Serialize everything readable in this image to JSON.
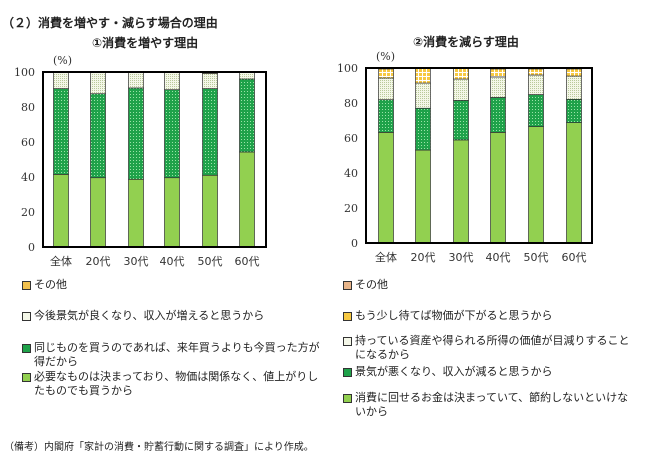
{
  "section_title": "（２）消費を増やす・減らす場合の理由",
  "footnote": "（備考）内閣府「家計の消費・貯蓄行動に関する調査」により作成。",
  "chart_data": [
    {
      "type": "bar",
      "stacked": true,
      "title": "①消費を増やす理由",
      "ylabel": "(%)",
      "ylim": [
        0,
        100
      ],
      "yticks": [
        "0",
        "20",
        "40",
        "60",
        "80",
        "100"
      ],
      "categories": [
        "全体",
        "20代",
        "30代",
        "40代",
        "50代",
        "60代"
      ],
      "series": [
        {
          "name": "必要なものは決まっており、物価は関係なく、値上がりしたものでも買うから",
          "color": "#92d050",
          "pattern": "solid",
          "values": [
            41.5,
            39.6,
            38.7,
            39.6,
            41.0,
            54.3
          ]
        },
        {
          "name": "同じものを買うのであれば、来年買うよりも今買った方が得だから",
          "color": "#1fa24a",
          "pattern": "dots",
          "values": [
            49.0,
            48.0,
            52.2,
            50.3,
            49.5,
            41.7
          ]
        },
        {
          "name": "今後景気が良くなり、収入が増えると思うから",
          "color": "#eef3dc",
          "pattern": "fine",
          "values": [
            9.5,
            12.4,
            9.1,
            10.1,
            8.7,
            4.0
          ]
        },
        {
          "name": "その他",
          "color": "#f2c14e",
          "pattern": "solid",
          "values": [
            0,
            0,
            0,
            0,
            0.8,
            0
          ]
        }
      ]
    },
    {
      "type": "bar",
      "stacked": true,
      "title": "②消費を減らす理由",
      "ylabel": "(%)",
      "ylim": [
        0,
        100
      ],
      "yticks": [
        "0",
        "20",
        "40",
        "60",
        "80",
        "100"
      ],
      "categories": [
        "全体",
        "20代",
        "30代",
        "40代",
        "50代",
        "60代"
      ],
      "series": [
        {
          "name": "消費に回せるお金は決まっていて、節約しないといけないから",
          "color": "#92d050",
          "pattern": "solid",
          "values": [
            63.2,
            53.1,
            58.9,
            63.2,
            66.5,
            68.8
          ]
        },
        {
          "name": "景気が悪くなり、収入が減ると思うから",
          "color": "#1fa24a",
          "pattern": "dots",
          "values": [
            18.7,
            23.9,
            22.6,
            20.0,
            18.3,
            13.3
          ]
        },
        {
          "name": "持っている資産や得られる所得の価値が目減りすることになるから",
          "color": "#eef3dc",
          "pattern": "fine",
          "values": [
            12.4,
            14.4,
            12.2,
            11.7,
            11.2,
            13.3
          ]
        },
        {
          "name": "もう少し待てば物価が下がると思うから",
          "color": "#f7c942",
          "pattern": "grid",
          "values": [
            5.2,
            8.6,
            6.3,
            4.6,
            3.5,
            4.1
          ]
        },
        {
          "name": "その他",
          "color": "#e8b58a",
          "pattern": "solid",
          "values": [
            0.5,
            0,
            0,
            0.5,
            0.5,
            0.5
          ]
        }
      ]
    }
  ]
}
